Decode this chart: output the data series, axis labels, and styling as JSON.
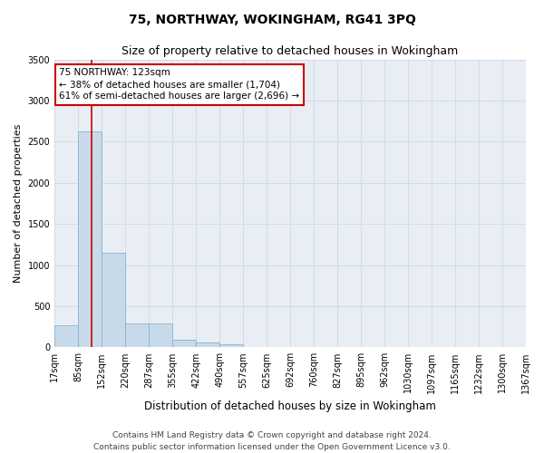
{
  "title": "75, NORTHWAY, WOKINGHAM, RG41 3PQ",
  "subtitle": "Size of property relative to detached houses in Wokingham",
  "xlabel": "Distribution of detached houses by size in Wokingham",
  "ylabel": "Number of detached properties",
  "bar_color": "#c8daea",
  "bar_edge_color": "#7aaac8",
  "background_color": "#e8eef4",
  "grid_color": "#d0d8e0",
  "annotation_line1": "75 NORTHWAY: 123sqm",
  "annotation_line2": "← 38% of detached houses are smaller (1,704)",
  "annotation_line3": "61% of semi-detached houses are larger (2,696) →",
  "vline_x": 123,
  "vline_color": "#cc0000",
  "bin_edges": [
    17,
    85,
    152,
    220,
    287,
    355,
    422,
    490,
    557,
    625,
    692,
    760,
    827,
    895,
    962,
    1030,
    1097,
    1165,
    1232,
    1300,
    1367
  ],
  "bin_counts": [
    270,
    2630,
    1150,
    290,
    285,
    90,
    58,
    32,
    0,
    0,
    0,
    0,
    0,
    0,
    0,
    0,
    0,
    0,
    0,
    0
  ],
  "ylim": [
    0,
    3500
  ],
  "yticks": [
    0,
    500,
    1000,
    1500,
    2000,
    2500,
    3000,
    3500
  ],
  "footnote1": "Contains HM Land Registry data © Crown copyright and database right 2024.",
  "footnote2": "Contains public sector information licensed under the Open Government Licence v3.0.",
  "title_fontsize": 10,
  "subtitle_fontsize": 9,
  "xlabel_fontsize": 8.5,
  "ylabel_fontsize": 8,
  "tick_fontsize": 7,
  "footnote_fontsize": 6.5,
  "annotation_fontsize": 7.5
}
